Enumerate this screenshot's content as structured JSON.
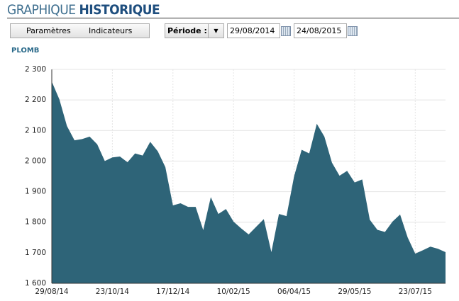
{
  "header": {
    "title_light": "GRAPHIQUE",
    "title_bold": "HISTORIQUE"
  },
  "toolbar": {
    "buttons": [
      "Paramètres",
      "Indicateurs"
    ],
    "period_label": "Période :",
    "start_date": "29/08/2014",
    "end_date": "24/08/2015"
  },
  "chart_data": {
    "type": "area",
    "categories": [
      "29/08/14",
      null,
      null,
      null,
      null,
      null,
      null,
      null,
      "23/10/14",
      null,
      null,
      null,
      null,
      null,
      null,
      null,
      "17/12/14",
      null,
      null,
      null,
      null,
      null,
      null,
      null,
      "10/02/15",
      null,
      null,
      null,
      null,
      null,
      null,
      null,
      "06/04/15",
      null,
      null,
      null,
      null,
      null,
      null,
      null,
      "29/05/15",
      null,
      null,
      null,
      null,
      null,
      null,
      null,
      "23/07/15",
      null,
      null,
      null,
      null
    ],
    "series": [
      {
        "name": "PLOMB",
        "color": "#2e6478",
        "values": [
          2260,
          2202,
          2115,
          2068,
          2072,
          2080,
          2055,
          2000,
          2012,
          2015,
          1996,
          2025,
          2018,
          2063,
          2032,
          1980,
          1855,
          1862,
          1850,
          1850,
          1774,
          1882,
          1827,
          1843,
          1802,
          1780,
          1760,
          1785,
          1810,
          1702,
          1827,
          1820,
          1950,
          2037,
          2025,
          2122,
          2080,
          1995,
          1952,
          1968,
          1930,
          1940,
          1808,
          1775,
          1768,
          1802,
          1825,
          1750,
          1697,
          1708,
          1720,
          1713,
          1702
        ]
      }
    ],
    "ylim": [
      1600,
      2300
    ],
    "yticks": [
      {
        "value": 1600,
        "label": "1 600"
      },
      {
        "value": 1700,
        "label": "1 700"
      },
      {
        "value": 1800,
        "label": "1 800"
      },
      {
        "value": 1900,
        "label": "1 900"
      },
      {
        "value": 2000,
        "label": "2 000"
      },
      {
        "value": 2100,
        "label": "2 100"
      },
      {
        "value": 2200,
        "label": "2 200"
      },
      {
        "value": 2300,
        "label": "2 300"
      }
    ],
    "grid": true
  }
}
